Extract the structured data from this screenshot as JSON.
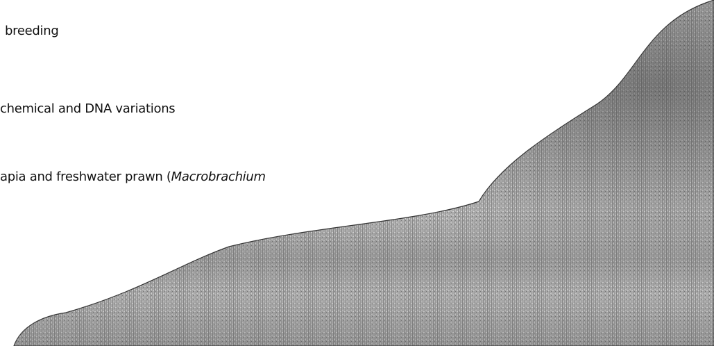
{
  "lines": [
    {
      "text": "breeding"
    },
    {
      "text": "chemical and DNA variations"
    },
    {
      "text": "apia and freshwater prawn (",
      "italic": "Macrobrachium"
    }
  ]
}
